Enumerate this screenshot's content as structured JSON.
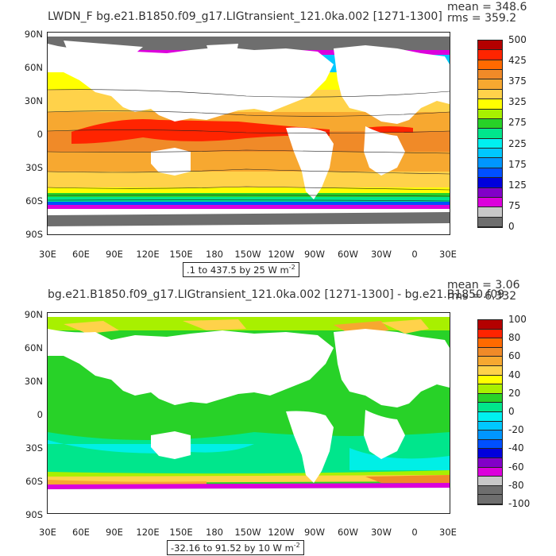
{
  "panel1": {
    "title": "LWDN_F bg.e21.B1850.f09_g17.LIGtransient_121.0ka.002 [1271-1300]",
    "mean": "mean = 348.6",
    "rms": "rms = 359.2",
    "range_label": ".1 to 437.5 by 25 W m",
    "range_sup": "-2",
    "colorbar_labels": [
      "500",
      "425",
      "375",
      "325",
      "275",
      "225",
      "175",
      "125",
      "75",
      "0"
    ],
    "colorbar_colors": [
      "#b40000",
      "#ff2400",
      "#ff6a00",
      "#f08a28",
      "#f7a830",
      "#ffd24a",
      "#ffff00",
      "#a8f000",
      "#28d228",
      "#00e68c",
      "#00f0f0",
      "#00c8ff",
      "#0096ff",
      "#0050ff",
      "#0000dc",
      "#8200c8",
      "#dc00dc",
      "#c8c8c8",
      "#6e6e6e"
    ]
  },
  "panel2": {
    "title": "bg.e21.B1850.f09_g17.LIGtransient_121.0ka.002 [1271-1300] - bg.e21.B1850.f09",
    "mean": "mean = 3.06",
    "rms": "rms = 6.332",
    "range_label": "-32.16 to 91.52 by 10 W m",
    "range_sup": "-2",
    "colorbar_labels": [
      "100",
      "80",
      "60",
      "40",
      "20",
      "0",
      "-20",
      "-40",
      "-60",
      "-80",
      "-100"
    ],
    "colorbar_colors": [
      "#b40000",
      "#ff2400",
      "#ff6a00",
      "#f08a28",
      "#f7a830",
      "#ffd24a",
      "#ffff00",
      "#a8f000",
      "#28d228",
      "#00e68c",
      "#00f0f0",
      "#00c8ff",
      "#0096ff",
      "#0050ff",
      "#0000dc",
      "#8200c8",
      "#dc00dc",
      "#c8c8c8",
      "#6e6e6e",
      "#6e6e6e"
    ]
  },
  "lat_labels": [
    "90N",
    "60N",
    "30N",
    "0",
    "30S",
    "60S",
    "90S"
  ],
  "lon_labels": [
    "30E",
    "60E",
    "90E",
    "120E",
    "150E",
    "180",
    "150W",
    "120W",
    "90W",
    "60W",
    "30W",
    "0",
    "30E"
  ]
}
